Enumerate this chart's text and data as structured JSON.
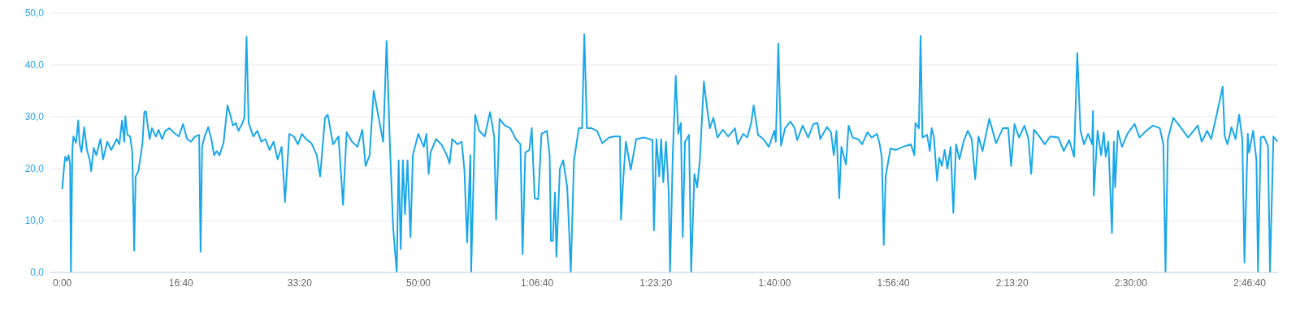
{
  "chart_data": {
    "type": "line",
    "color": "#1aa7ea",
    "grid": "y",
    "xlim": [
      -100,
      10240
    ],
    "ylim": [
      0,
      50
    ],
    "yticks": [
      {
        "value": 0,
        "label": "0,0"
      },
      {
        "value": 10,
        "label": "10,0"
      },
      {
        "value": 20,
        "label": "20,0"
      },
      {
        "value": 30,
        "label": "30,0"
      },
      {
        "value": 40,
        "label": "40,0"
      },
      {
        "value": 50,
        "label": "50,0"
      }
    ],
    "xticks": [
      {
        "value": 0,
        "label": "0:00"
      },
      {
        "value": 1000,
        "label": "16:40"
      },
      {
        "value": 2000,
        "label": "33:20"
      },
      {
        "value": 3000,
        "label": "50:00"
      },
      {
        "value": 4000,
        "label": "1:06:40"
      },
      {
        "value": 5000,
        "label": "1:23:20"
      },
      {
        "value": 6000,
        "label": "1:40:00"
      },
      {
        "value": 7000,
        "label": "1:56:40"
      },
      {
        "value": 8000,
        "label": "2:13:20"
      },
      {
        "value": 9000,
        "label": "2:30:00"
      },
      {
        "value": 10000,
        "label": "2:46:40"
      }
    ],
    "x": [
      0,
      16,
      25,
      39,
      53,
      66,
      73,
      85,
      94,
      116,
      135,
      146,
      162,
      185,
      208,
      230,
      244,
      265,
      287,
      322,
      344,
      379,
      413,
      458,
      481,
      504,
      522,
      531,
      549,
      572,
      590,
      606,
      618,
      641,
      675,
      691,
      704,
      720,
      736,
      755,
      789,
      811,
      841,
      868,
      903,
      937,
      982,
      1017,
      1051,
      1085,
      1119,
      1153,
      1165,
      1178,
      1199,
      1229,
      1256,
      1279,
      1301,
      1324,
      1358,
      1392,
      1415,
      1438,
      1461,
      1484,
      1518,
      1534,
      1552,
      1570,
      1609,
      1643,
      1677,
      1711,
      1746,
      1780,
      1814,
      1848,
      1876,
      1912,
      1951,
      1985,
      2019,
      2053,
      2099,
      2144,
      2172,
      2213,
      2236,
      2281,
      2327,
      2365,
      2395,
      2441,
      2486,
      2527,
      2555,
      2589,
      2623,
      2669,
      2703,
      2732,
      2760,
      2787,
      2817,
      2833,
      2851,
      2869,
      2887,
      2908,
      2933,
      2953,
      2999,
      3045,
      3067,
      3086,
      3102,
      3148,
      3193,
      3239,
      3262,
      3284,
      3330,
      3364,
      3387,
      3410,
      3437,
      3444,
      3478,
      3512,
      3558,
      3603,
      3638,
      3654,
      3683,
      3729,
      3774,
      3820,
      3859,
      3877,
      3900,
      3934,
      3954,
      3979,
      4009,
      4036,
      4082,
      4105,
      4116,
      4132,
      4150,
      4162,
      4191,
      4219,
      4253,
      4269,
      4283,
      4310,
      4351,
      4378,
      4397,
      4419,
      4458,
      4504,
      4549,
      4606,
      4652,
      4697,
      4706,
      4725,
      4747,
      4788,
      4834,
      4903,
      4971,
      4983,
      5005,
      5028,
      5044,
      5062,
      5085,
      5108,
      5119,
      5142,
      5167,
      5188,
      5210,
      5226,
      5245,
      5279,
      5297,
      5324,
      5347,
      5370,
      5404,
      5427,
      5454,
      5484,
      5518,
      5564,
      5609,
      5666,
      5689,
      5735,
      5769,
      5803,
      5823,
      5860,
      5906,
      5951,
      5997,
      6010,
      6031,
      6054,
      6088,
      6133,
      6168,
      6190,
      6236,
      6282,
      6327,
      6361,
      6384,
      6441,
      6475,
      6498,
      6521,
      6544,
      6562,
      6601,
      6623,
      6657,
      6703,
      6737,
      6782,
      6817,
      6862,
      6885,
      6903,
      6919,
      6935,
      6976,
      7022,
      7079,
      7147,
      7177,
      7186,
      7215,
      7229,
      7245,
      7284,
      7307,
      7322,
      7341,
      7368,
      7386,
      7409,
      7432,
      7455,
      7482,
      7505,
      7528,
      7557,
      7591,
      7626,
      7660,
      7689,
      7717,
      7751,
      7808,
      7865,
      7922,
      7967,
      7992,
      8020,
      8059,
      8104,
      8138,
      8161,
      8184,
      8230,
      8275,
      8321,
      8389,
      8435,
      8481,
      8522,
      8549,
      8576,
      8606,
      8640,
      8674,
      8681,
      8688,
      8720,
      8750,
      8772,
      8788,
      8811,
      8841,
      8857,
      8868,
      8891,
      8925,
      8971,
      9032,
      9073,
      9130,
      9187,
      9244,
      9274,
      9292,
      9312,
      9358,
      9415,
      9483,
      9563,
      9597,
      9643,
      9677,
      9723,
      9757,
      9773,
      9791,
      9814,
      9848,
      9882,
      9912,
      9939,
      9957,
      9985,
      9996,
      10030,
      10058,
      10071,
      10094,
      10121,
      10155,
      10172,
      10201,
      10235
    ],
    "values": [
      16.1,
      20.5,
      22.3,
      21.5,
      22.6,
      21,
      0,
      23.6,
      26.2,
      25,
      29.3,
      24.8,
      23.2,
      28,
      23.6,
      21.8,
      19.5,
      24,
      22.6,
      25.7,
      21.8,
      25.2,
      23.6,
      25.7,
      24.7,
      29.3,
      25.2,
      30.1,
      26.5,
      26.2,
      23.1,
      4.2,
      18.5,
      19.5,
      24.7,
      30.9,
      31.1,
      28.3,
      25.7,
      27.8,
      26.2,
      27.5,
      25.7,
      27.3,
      27.8,
      27,
      26.2,
      28.6,
      25.7,
      25.2,
      26.2,
      26.5,
      4,
      24.2,
      26.2,
      28,
      25.7,
      22.6,
      23.4,
      22.6,
      24.9,
      32.2,
      30.4,
      28.3,
      28.8,
      27.3,
      28.8,
      29.8,
      45.4,
      28.8,
      26.2,
      27.3,
      25.2,
      25.7,
      23.6,
      25.2,
      21.8,
      24.2,
      13.6,
      26.7,
      26.2,
      24.7,
      26.7,
      25.7,
      24.9,
      22.6,
      18.5,
      29.8,
      30.4,
      24.7,
      26.2,
      13,
      27,
      25.2,
      24.2,
      27.5,
      20.5,
      22.6,
      35,
      29.3,
      25.2,
      44.6,
      24.2,
      8.6,
      0,
      21.6,
      4.5,
      21.6,
      11.2,
      21.6,
      6.8,
      22.6,
      26.7,
      24.2,
      26.7,
      19,
      23.1,
      25.7,
      24.7,
      22.6,
      21,
      25.7,
      24.7,
      25.2,
      19.8,
      5.8,
      22.6,
      0,
      30.4,
      27.3,
      26.2,
      30.9,
      26.2,
      10.2,
      29.6,
      28.3,
      27.8,
      25.7,
      24.7,
      3.5,
      23.1,
      23.6,
      27.8,
      14.3,
      14.1,
      26.7,
      27.3,
      22.6,
      6.1,
      6.1,
      15.4,
      3,
      20,
      21.6,
      16.4,
      8.1,
      0,
      21.6,
      27.8,
      27.8,
      45.9,
      27.8,
      27.8,
      27.3,
      24.9,
      26,
      26.2,
      26.2,
      10.2,
      18,
      25.2,
      19.8,
      25.7,
      26,
      25.5,
      8.1,
      25.7,
      18.5,
      25.7,
      17.4,
      25.2,
      15.4,
      0,
      22.6,
      37.9,
      26.7,
      28.8,
      6.8,
      25.2,
      26.5,
      0,
      19,
      16.4,
      21.6,
      36.8,
      32.4,
      27.8,
      29.8,
      26,
      27.5,
      26.2,
      27.8,
      24.7,
      26.7,
      26,
      28.8,
      32.2,
      26.5,
      25.7,
      24.2,
      27.3,
      25.2,
      44.1,
      24.4,
      27.8,
      29.1,
      27.8,
      25.5,
      28.3,
      26,
      28.6,
      28.8,
      25.7,
      28,
      27,
      22.6,
      27.3,
      14.3,
      24.2,
      20.8,
      28.3,
      26,
      25.7,
      24.7,
      27,
      26,
      26.7,
      24.7,
      22.1,
      5.3,
      18.5,
      23.9,
      23.6,
      24.2,
      24.7,
      22.6,
      28.8,
      27.8,
      45.6,
      26,
      26.5,
      23.4,
      27.8,
      26.2,
      17.7,
      22.1,
      20.5,
      23.6,
      20,
      24.2,
      11.5,
      24.7,
      21.8,
      25.2,
      27.3,
      25.7,
      18,
      26.2,
      23.4,
      29.6,
      24.9,
      27.8,
      27.8,
      20.5,
      28.6,
      26,
      28.3,
      25.7,
      19,
      27.5,
      26.2,
      24.7,
      26.2,
      26,
      23.4,
      25.5,
      22.3,
      42.3,
      27.3,
      24.7,
      26.7,
      24.7,
      31.1,
      14.8,
      27.3,
      22.6,
      27,
      22.3,
      25.2,
      7.6,
      25.2,
      16.4,
      27.3,
      24.2,
      26.7,
      28.6,
      26,
      27.3,
      28.3,
      27.8,
      24.7,
      0,
      25.7,
      29.8,
      28.1,
      26,
      28.3,
      25.2,
      27.3,
      25.7,
      30.4,
      34,
      35.8,
      26.2,
      24.7,
      28,
      25.7,
      30.4,
      25.7,
      1.9,
      26.7,
      23.1,
      27.3,
      21.6,
      0,
      26,
      26.2,
      24.4,
      0,
      26.2,
      25.2
    ]
  }
}
